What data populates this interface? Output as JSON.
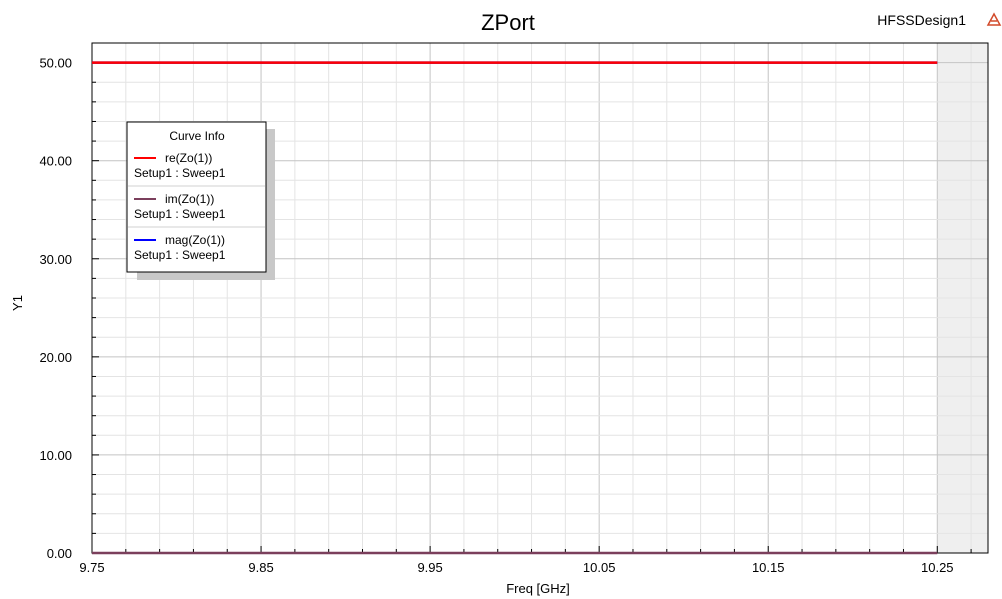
{
  "header": {
    "design_name": "HFSSDesign1",
    "logo_icon": "ansys-logo-icon"
  },
  "legend": {
    "title": "Curve Info"
  },
  "chart_data": {
    "type": "line",
    "title": "ZPort",
    "xlabel": "Freq [GHz]",
    "ylabel": "Y1",
    "xlim": [
      9.75,
      10.28
    ],
    "ylim": [
      0,
      52.0
    ],
    "x_ticks": [
      "9.75",
      "9.85",
      "9.95",
      "10.05",
      "10.15",
      "10.25"
    ],
    "y_ticks": [
      "0.00",
      "10.00",
      "20.00",
      "30.00",
      "40.00",
      "50.00"
    ],
    "sweep_end": 10.25,
    "grid": true,
    "legend_position": "top-left",
    "series": [
      {
        "name": "re(Zo(1))",
        "setup": "Setup1 : Sweep1",
        "color": "#ff0000",
        "x": [
          9.75,
          10.25
        ],
        "y": [
          50.0,
          50.0
        ]
      },
      {
        "name": "im(Zo(1))",
        "setup": "Setup1 : Sweep1",
        "color": "#7b3f5c",
        "x": [
          9.75,
          10.25
        ],
        "y": [
          0.0,
          0.0
        ]
      },
      {
        "name": "mag(Zo(1))",
        "setup": "Setup1 : Sweep1",
        "color": "#0000ff",
        "x": [
          9.75,
          10.25
        ],
        "y": [
          50.0,
          50.0
        ]
      }
    ]
  }
}
